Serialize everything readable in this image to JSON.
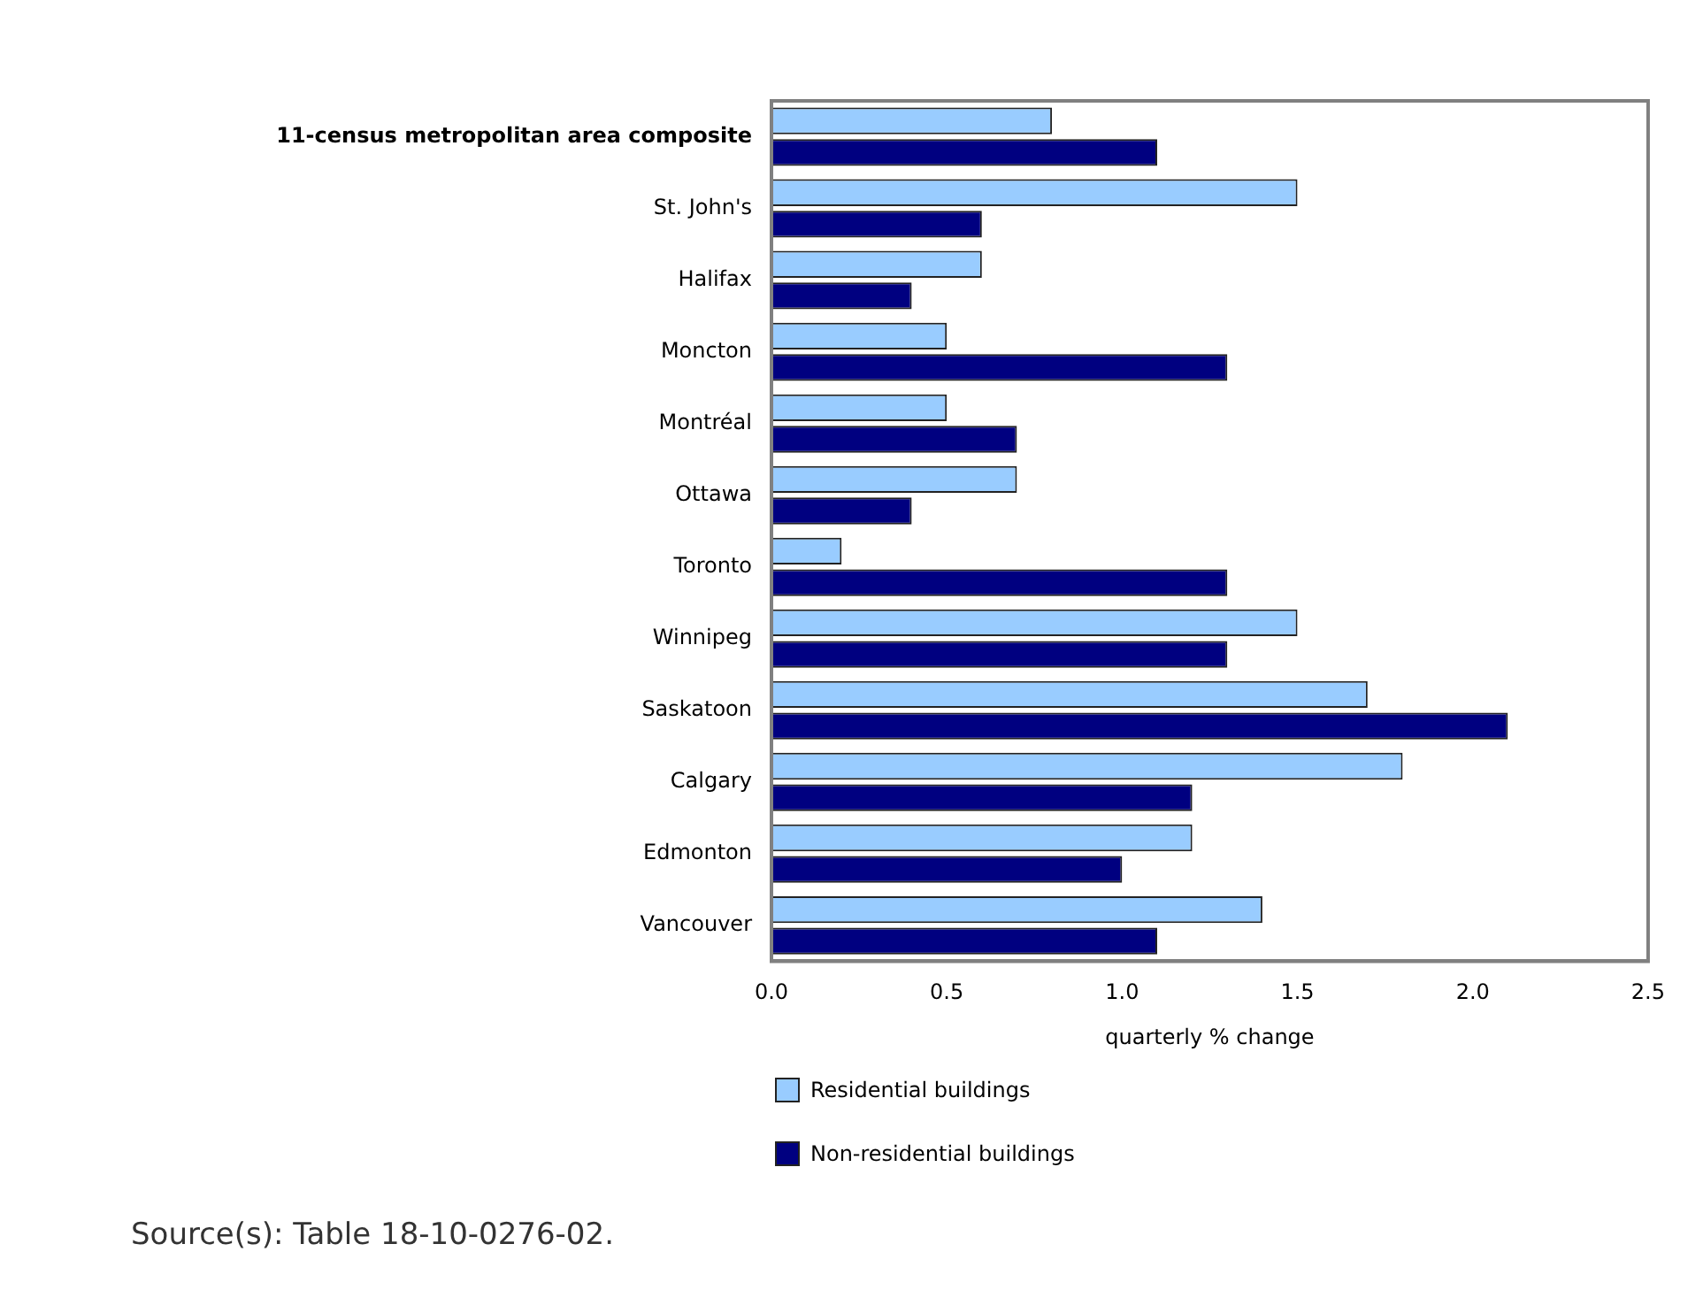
{
  "chart_data": {
    "type": "bar",
    "orientation": "horizontal",
    "xlabel": "quarterly % change",
    "categories": [
      "11-census metropolitan area composite",
      "St. John's",
      "Halifax",
      "Moncton",
      "Montréal",
      "Ottawa",
      "Toronto",
      "Winnipeg",
      "Saskatoon",
      "Calgary",
      "Edmonton",
      "Vancouver"
    ],
    "series": [
      {
        "name": "Residential buildings",
        "color": "#99ccff",
        "values": [
          0.8,
          1.5,
          0.6,
          0.5,
          0.5,
          0.7,
          0.2,
          1.5,
          1.7,
          1.8,
          1.2,
          1.4
        ]
      },
      {
        "name": "Non-residential buildings",
        "color": "#000080",
        "values": [
          1.1,
          0.6,
          0.4,
          1.3,
          0.7,
          0.4,
          1.3,
          1.3,
          2.1,
          1.2,
          1.0,
          1.1
        ]
      }
    ],
    "xlim": [
      0,
      2.5
    ],
    "xticks": [
      {
        "value": 0,
        "label": "0.0"
      },
      {
        "value": 0.5,
        "label": "0.5"
      },
      {
        "value": 1,
        "label": "1.0"
      },
      {
        "value": 1.5,
        "label": "1.5"
      },
      {
        "value": 2,
        "label": "2.0"
      },
      {
        "value": 2.5,
        "label": "2.5"
      }
    ],
    "grid": false,
    "legend": "bottom",
    "annotations": [
      "Source(s): Table 18-10-0276-02."
    ]
  }
}
